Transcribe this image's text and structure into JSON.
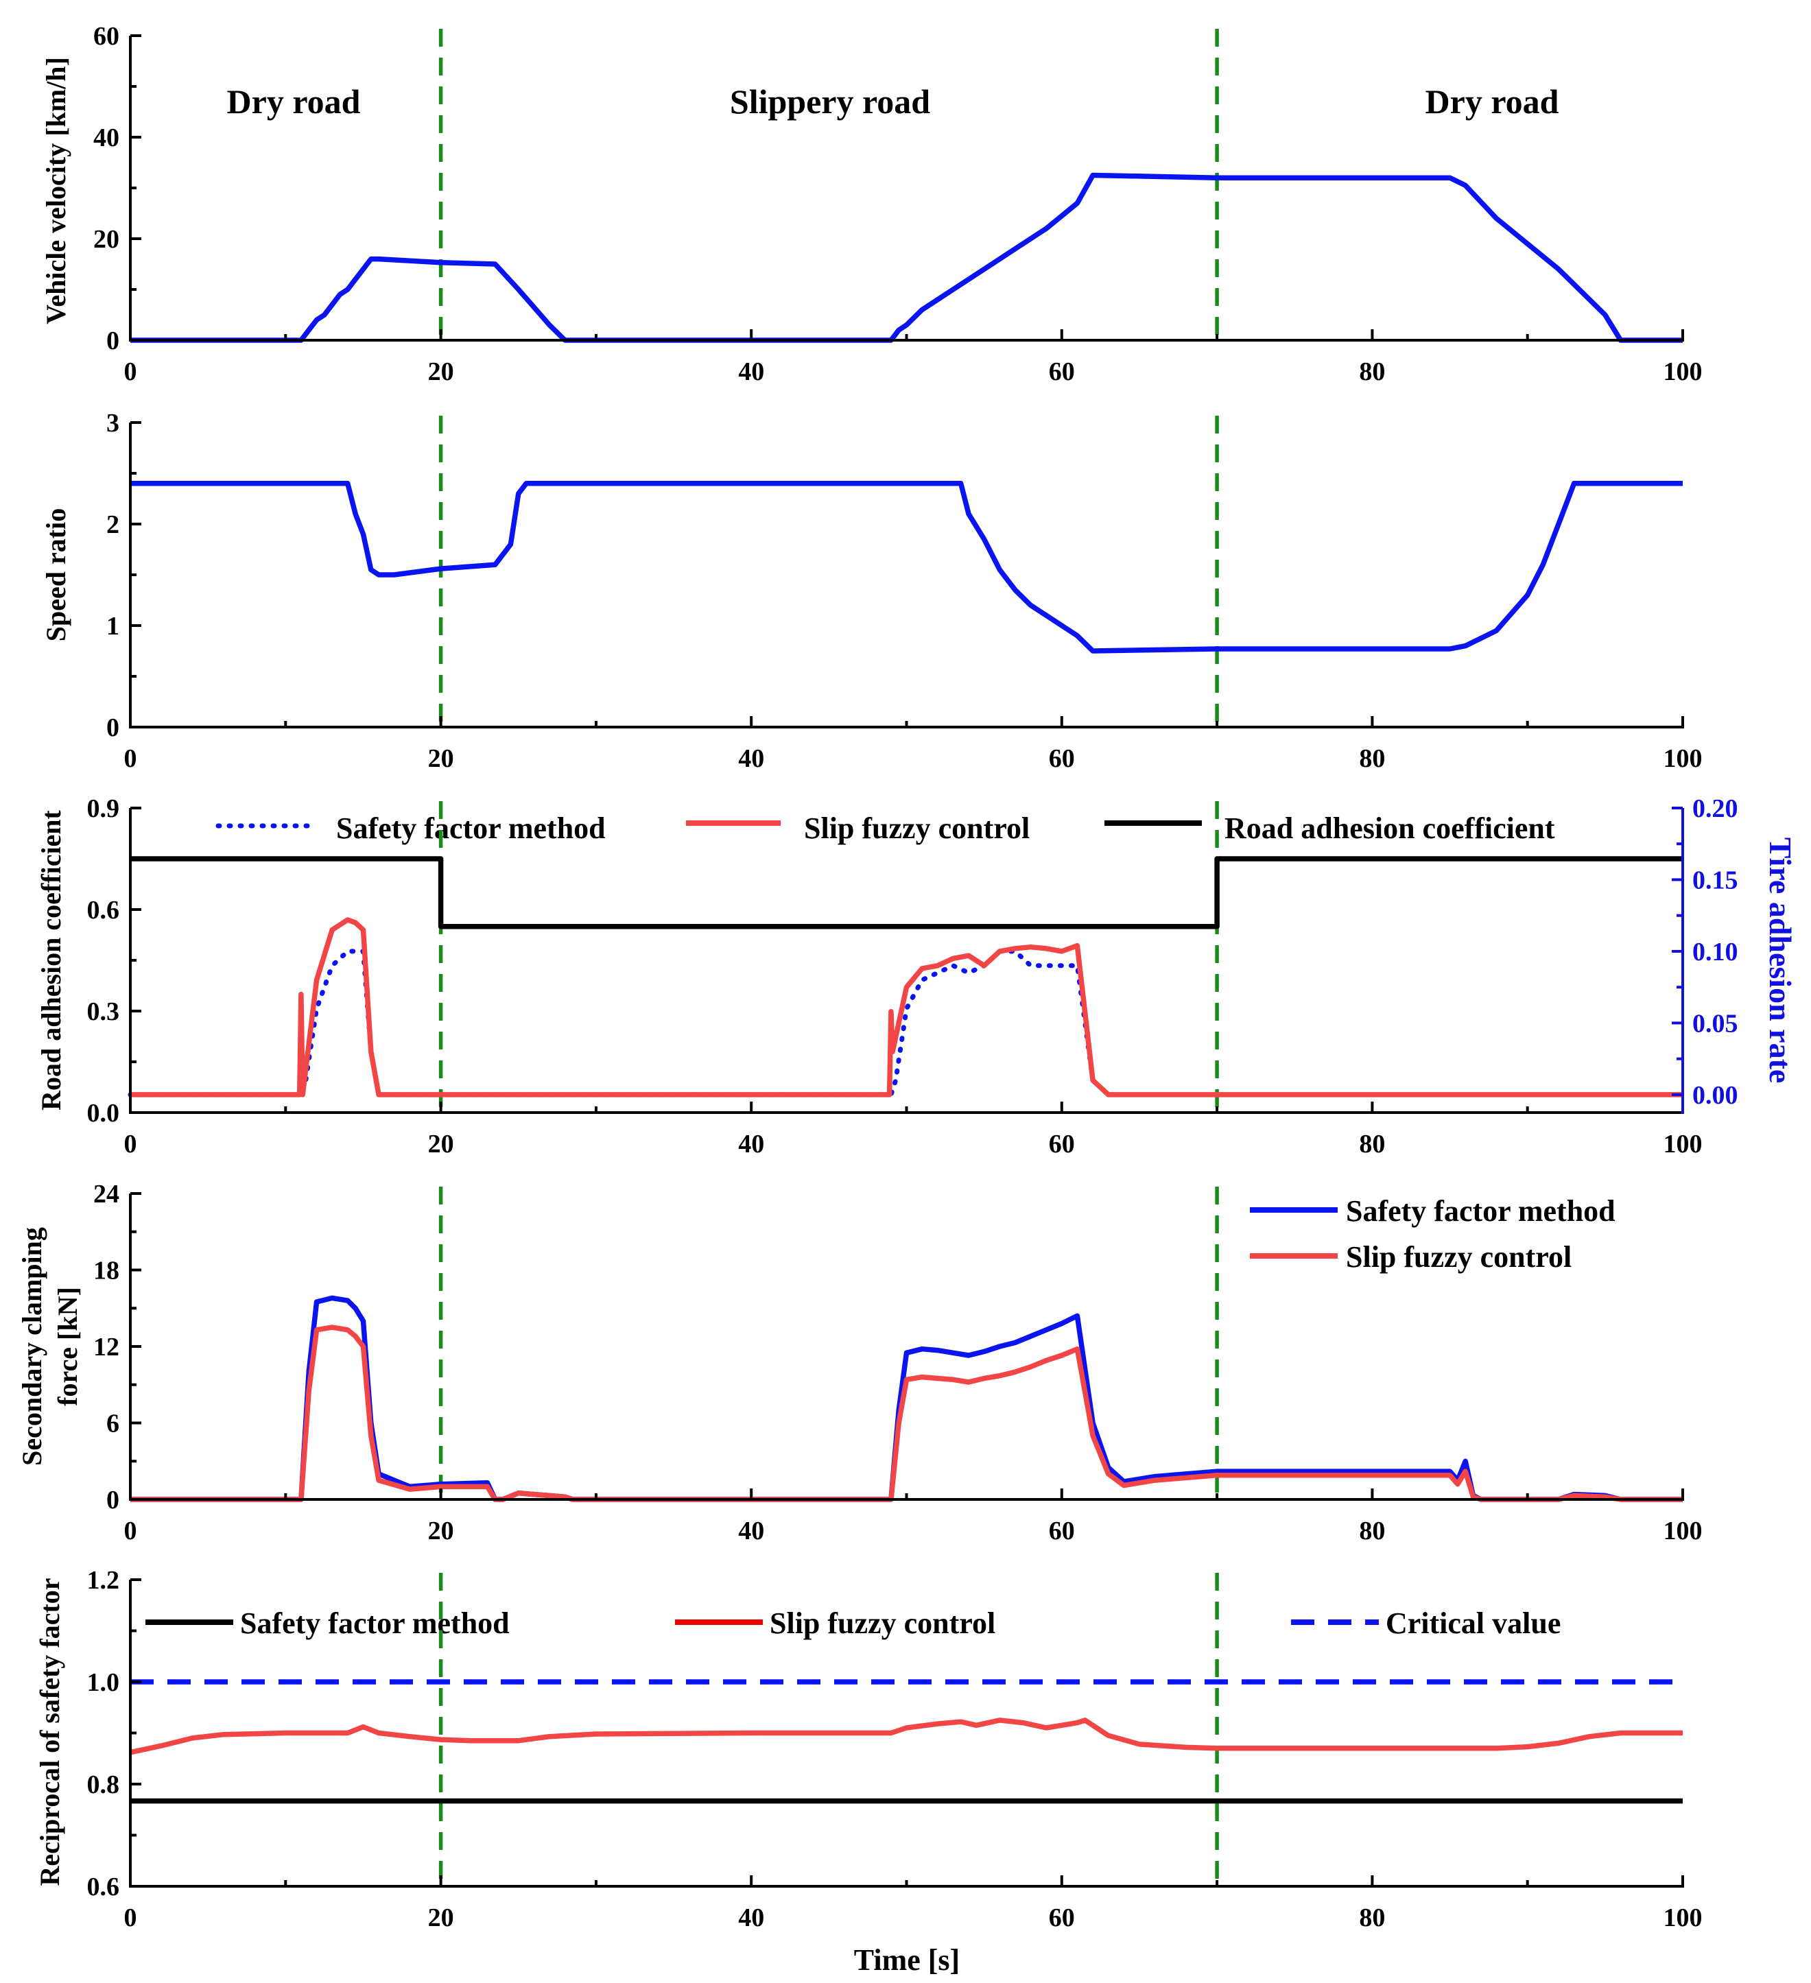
{
  "figure": {
    "xlabel": "Time [s]",
    "xticks": [
      "0",
      "20",
      "40",
      "60",
      "80",
      "100"
    ],
    "colors": {
      "blue": "#0a14f0",
      "red": "#f24646",
      "black": "#000000",
      "green": "#1a8c1a",
      "tire_axis": "#1010e0"
    }
  },
  "chart_data": [
    {
      "id": "velocity",
      "type": "line",
      "ylabel": "Vehicle velocity [km/h]",
      "xlim": [
        0,
        100
      ],
      "ylim": [
        0,
        60
      ],
      "yticks": [
        "0",
        "20",
        "40",
        "60"
      ],
      "ytick_values": [
        0,
        20,
        40,
        60
      ],
      "dividers": [
        20,
        70
      ],
      "regions": [
        {
          "label": "Dry road",
          "x": 10
        },
        {
          "label": "Slippery road",
          "x": 45
        },
        {
          "label": "Dry road",
          "x": 88
        }
      ],
      "series": [
        {
          "name": "Vehicle velocity",
          "color": "blue",
          "style": "solid",
          "x": [
            0,
            11,
            11.5,
            12,
            12.5,
            13,
            13.5,
            14,
            14.5,
            15,
            15.5,
            16,
            20,
            23.5,
            25,
            27,
            28,
            30,
            49,
            49.5,
            50,
            51,
            52,
            53,
            54,
            55,
            57,
            59,
            61,
            62,
            70,
            85,
            86,
            88,
            90,
            92,
            95,
            96,
            100
          ],
          "y": [
            0,
            0,
            2,
            4,
            5,
            7,
            9,
            10,
            12,
            14,
            16,
            16,
            15.3,
            15,
            10,
            3,
            0,
            0,
            0,
            2,
            3,
            6,
            8,
            10,
            12,
            14,
            18,
            22,
            27,
            32.5,
            32,
            32,
            30.5,
            24,
            19,
            14,
            5,
            0,
            0
          ]
        }
      ]
    },
    {
      "id": "speed_ratio",
      "type": "line",
      "ylabel": "Speed ratio",
      "xlim": [
        0,
        100
      ],
      "ylim": [
        0,
        3
      ],
      "yticks": [
        "0",
        "1",
        "2",
        "3"
      ],
      "ytick_values": [
        0,
        1,
        2,
        3
      ],
      "dividers": [
        20,
        70
      ],
      "series": [
        {
          "name": "Speed ratio",
          "color": "blue",
          "style": "solid",
          "x": [
            0,
            14,
            14.5,
            15,
            15.5,
            16,
            17,
            20,
            23.5,
            24.5,
            25,
            25.5,
            53.5,
            54,
            55,
            56,
            57,
            58,
            59,
            60,
            61,
            62,
            70,
            85,
            86,
            88,
            90,
            91,
            92,
            93,
            100
          ],
          "y": [
            2.4,
            2.4,
            2.1,
            1.9,
            1.55,
            1.5,
            1.5,
            1.56,
            1.6,
            1.8,
            2.3,
            2.4,
            2.4,
            2.1,
            1.85,
            1.55,
            1.35,
            1.2,
            1.1,
            1.0,
            0.9,
            0.75,
            0.77,
            0.77,
            0.8,
            0.95,
            1.3,
            1.6,
            2.0,
            2.4,
            2.4
          ]
        }
      ]
    },
    {
      "id": "adhesion",
      "type": "line",
      "ylabel": "Road adhesion coefficient",
      "ylabel_right": "Tire adhesion rate",
      "xlim": [
        0,
        100
      ],
      "ylim": [
        0,
        0.9
      ],
      "ylim_right": [
        -0.0125,
        0.2
      ],
      "yticks": [
        "0.0",
        "0.3",
        "0.6",
        "0.9"
      ],
      "ytick_values": [
        0,
        0.3,
        0.6,
        0.9
      ],
      "yticks_right": [
        "0.00",
        "0.05",
        "0.10",
        "0.15",
        "0.20"
      ],
      "ytick_values_right": [
        0,
        0.05,
        0.1,
        0.15,
        0.2
      ],
      "dividers": [
        20,
        70
      ],
      "legend": [
        "Safety factor method",
        "Slip fuzzy control",
        "Road adhesion coefficient"
      ],
      "series": [
        {
          "name": "Safety factor method",
          "color": "blue",
          "style": "dotted",
          "axis": "right",
          "x": [
            0,
            11,
            11.3,
            12,
            13,
            14,
            15,
            15.5,
            16,
            20,
            49,
            49.3,
            50,
            51,
            52,
            53,
            54,
            55,
            56,
            57,
            58,
            59,
            60,
            61,
            62,
            63,
            70,
            100
          ],
          "y": [
            0,
            0,
            0.01,
            0.06,
            0.09,
            0.1,
            0.1,
            0.03,
            0,
            0,
            0,
            0.01,
            0.06,
            0.08,
            0.085,
            0.09,
            0.085,
            0.09,
            0.1,
            0.1,
            0.09,
            0.09,
            0.09,
            0.09,
            0.01,
            0,
            0,
            0
          ]
        },
        {
          "name": "Slip fuzzy control",
          "color": "red",
          "style": "solid",
          "axis": "right",
          "x": [
            0,
            10.9,
            11,
            11.1,
            12,
            13,
            14,
            14.5,
            15,
            15.5,
            16,
            20,
            48.9,
            49,
            49.1,
            50,
            51,
            52,
            53,
            54,
            55,
            56,
            57,
            58,
            59,
            60,
            61,
            62,
            63,
            70,
            100
          ],
          "y": [
            0,
            0,
            0.07,
            0,
            0.08,
            0.115,
            0.122,
            0.12,
            0.115,
            0.03,
            0,
            0,
            0,
            0.058,
            0.03,
            0.075,
            0.088,
            0.09,
            0.095,
            0.097,
            0.09,
            0.1,
            0.102,
            0.103,
            0.102,
            0.1,
            0.104,
            0.01,
            0,
            0,
            0
          ]
        },
        {
          "name": "Road adhesion coefficient",
          "color": "black",
          "style": "solid",
          "axis": "left",
          "x": [
            0,
            20,
            20,
            70,
            70,
            100
          ],
          "y": [
            0.75,
            0.75,
            0.55,
            0.55,
            0.75,
            0.75
          ]
        }
      ]
    },
    {
      "id": "clamping",
      "type": "line",
      "ylabel": "Secondary clamping force [kN]",
      "ylabel_lines": [
        "Secondary clamping",
        "force [kN]"
      ],
      "xlim": [
        0,
        100
      ],
      "ylim": [
        0,
        24
      ],
      "yticks": [
        "0",
        "6",
        "12",
        "18",
        "24"
      ],
      "ytick_values": [
        0,
        6,
        12,
        18,
        24
      ],
      "dividers": [
        20,
        70
      ],
      "legend": [
        "Safety factor method",
        "Slip fuzzy control"
      ],
      "series": [
        {
          "name": "Safety factor method",
          "color": "blue",
          "style": "solid",
          "x": [
            0,
            11,
            11.5,
            12,
            13,
            14,
            14.5,
            15,
            15.5,
            16,
            18,
            20,
            23,
            23.5,
            24,
            25,
            26,
            27,
            28,
            28.5,
            49,
            49.5,
            50,
            51,
            52,
            53,
            54,
            55,
            56,
            57,
            58,
            59,
            60,
            61,
            62,
            63,
            64,
            66,
            70,
            85,
            85.5,
            86,
            86.5,
            87,
            92,
            93,
            95,
            96,
            100
          ],
          "y": [
            0,
            0,
            10,
            15.5,
            15.8,
            15.6,
            15,
            14,
            6,
            2,
            1,
            1.2,
            1.3,
            0,
            0,
            0.5,
            0.4,
            0.3,
            0.2,
            0,
            0,
            7,
            11.5,
            11.8,
            11.7,
            11.5,
            11.3,
            11.6,
            12,
            12.3,
            12.8,
            13.3,
            13.8,
            14.4,
            6,
            2.5,
            1.4,
            1.8,
            2.2,
            2.2,
            1.5,
            3.0,
            0.3,
            0,
            0,
            0.4,
            0.3,
            0,
            0
          ]
        },
        {
          "name": "Slip fuzzy control",
          "color": "red",
          "style": "solid",
          "x": [
            0,
            11,
            11.5,
            12,
            13,
            14,
            14.5,
            15,
            15.5,
            16,
            18,
            20,
            23,
            23.5,
            24,
            25,
            26,
            27,
            28,
            28.5,
            49,
            49.5,
            50,
            51,
            52,
            53,
            54,
            55,
            56,
            57,
            58,
            59,
            60,
            61,
            62,
            63,
            64,
            66,
            70,
            85,
            85.5,
            86,
            86.5,
            87,
            92,
            93,
            95,
            96,
            100
          ],
          "y": [
            0,
            0,
            8.5,
            13.3,
            13.5,
            13.3,
            12.8,
            12,
            5,
            1.5,
            0.8,
            1,
            1,
            0,
            0,
            0.5,
            0.4,
            0.3,
            0.2,
            0,
            0,
            6,
            9.4,
            9.6,
            9.5,
            9.4,
            9.2,
            9.5,
            9.7,
            10,
            10.4,
            10.9,
            11.3,
            11.8,
            5,
            2,
            1.1,
            1.5,
            1.9,
            1.9,
            1.2,
            2.2,
            0.2,
            0,
            0,
            0.3,
            0.2,
            0,
            0
          ]
        }
      ]
    },
    {
      "id": "reciprocal",
      "type": "line",
      "ylabel": "Reciprocal of safety factor",
      "xlim": [
        0,
        100
      ],
      "ylim": [
        0.6,
        1.2
      ],
      "yticks": [
        "0.6",
        "0.8",
        "1.0",
        "1.2"
      ],
      "ytick_values": [
        0.6,
        0.8,
        1.0,
        1.2
      ],
      "dividers": [
        20,
        70
      ],
      "legend": [
        "Safety factor method",
        "Slip fuzzy control",
        "Critical value"
      ],
      "series": [
        {
          "name": "Safety factor method",
          "color": "black",
          "style": "solid",
          "x": [
            0,
            100
          ],
          "y": [
            0.767,
            0.767
          ]
        },
        {
          "name": "Slip fuzzy control",
          "color": "red",
          "style": "solid",
          "x": [
            0,
            2,
            4,
            6,
            10,
            14,
            15,
            16,
            18,
            20,
            22,
            25,
            27,
            30,
            40,
            49,
            50,
            52,
            53.5,
            54.5,
            56,
            57.5,
            59,
            61,
            61.5,
            63,
            65,
            68,
            70,
            80,
            88,
            90,
            92,
            94,
            96,
            100
          ],
          "y": [
            0.862,
            0.875,
            0.89,
            0.897,
            0.9,
            0.9,
            0.912,
            0.9,
            0.893,
            0.887,
            0.885,
            0.885,
            0.893,
            0.898,
            0.9,
            0.9,
            0.91,
            0.918,
            0.922,
            0.915,
            0.925,
            0.92,
            0.91,
            0.92,
            0.925,
            0.895,
            0.878,
            0.872,
            0.87,
            0.87,
            0.87,
            0.873,
            0.88,
            0.893,
            0.9,
            0.9
          ]
        },
        {
          "name": "Critical value",
          "color": "blue",
          "style": "dashed",
          "x": [
            0,
            100
          ],
          "y": [
            1.0,
            1.0
          ]
        }
      ]
    }
  ]
}
